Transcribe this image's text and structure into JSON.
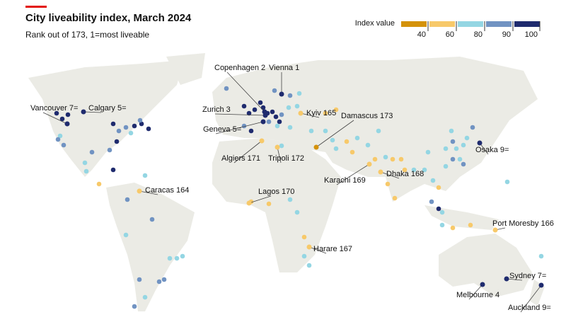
{
  "header": {
    "title": "City liveability index, March 2024",
    "subtitle": "Rank out of 173, 1=most liveable"
  },
  "legend": {
    "title": "Index value",
    "bands": [
      "#d4920a",
      "#f7c96a",
      "#94d6e3",
      "#7193c2",
      "#1f2b6e"
    ],
    "ticks": [
      40,
      60,
      80,
      90,
      100
    ]
  },
  "labels": [
    "Copenhagen 2",
    "Vienna 1",
    "Zurich 3",
    "Geneva 5=",
    "Kyiv 165",
    "Damascus 173",
    "Vancouver 7=",
    "Calgary 5=",
    "Algiers 171",
    "Tripoli 172",
    "Caracas 164",
    "Lagos 170",
    "Karachi 169",
    "Dhaka 168",
    "Osaka 9=",
    "Port Moresby 166",
    "Harare 167",
    "Sydney 7=",
    "Melbourne 4",
    "Auckland 9="
  ]
}
